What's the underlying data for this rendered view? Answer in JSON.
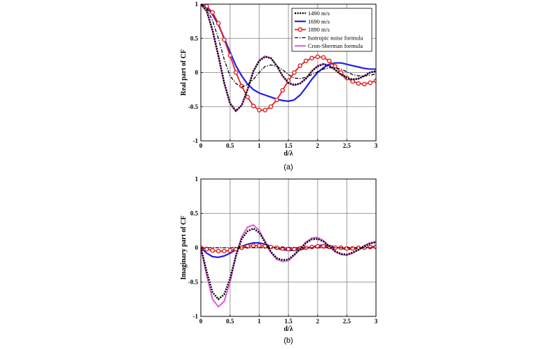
{
  "chart_data": [
    {
      "type": "line",
      "caption": "(a)",
      "xlabel": "d/λ",
      "ylabel": "Real part of CF",
      "xlim": [
        0,
        3
      ],
      "ylim": [
        -1,
        1
      ],
      "xticks": [
        "0",
        "0.5",
        "1",
        "1.5",
        "2",
        "2.5",
        "3"
      ],
      "yticks": [
        "-1",
        "-0.5",
        "0",
        "0.5",
        "1"
      ],
      "grid": true,
      "legend": "top-right",
      "series": [
        {
          "name": "1490 m/s",
          "color": "#000000",
          "style": "dotted",
          "x": [
            0,
            0.1,
            0.2,
            0.3,
            0.4,
            0.5,
            0.6,
            0.7,
            0.8,
            0.9,
            1.0,
            1.1,
            1.2,
            1.3,
            1.4,
            1.5,
            1.6,
            1.7,
            1.8,
            1.9,
            2.0,
            2.1,
            2.2,
            2.3,
            2.4,
            2.5,
            2.6,
            2.7,
            2.8,
            2.9,
            3.0
          ],
          "y": [
            1,
            0.9,
            0.62,
            0.25,
            -0.15,
            -0.45,
            -0.56,
            -0.48,
            -0.25,
            0.02,
            0.17,
            0.23,
            0.21,
            0.1,
            -0.05,
            -0.15,
            -0.18,
            -0.16,
            -0.09,
            0.02,
            0.09,
            0.12,
            0.1,
            0.04,
            -0.03,
            -0.08,
            -0.1,
            -0.09,
            -0.05,
            0.0,
            0.02
          ]
        },
        {
          "name": "1690 m/s",
          "color": "#1f1fe6",
          "style": "solid",
          "x": [
            0,
            0.1,
            0.2,
            0.3,
            0.4,
            0.5,
            0.6,
            0.7,
            0.8,
            0.9,
            1.0,
            1.1,
            1.2,
            1.3,
            1.4,
            1.5,
            1.6,
            1.7,
            1.8,
            1.9,
            2.0,
            2.1,
            2.2,
            2.3,
            2.4,
            2.5,
            2.6,
            2.7,
            2.8,
            2.9,
            3.0
          ],
          "y": [
            1,
            0.96,
            0.85,
            0.7,
            0.5,
            0.3,
            0.1,
            -0.05,
            -0.17,
            -0.25,
            -0.3,
            -0.33,
            -0.36,
            -0.39,
            -0.41,
            -0.42,
            -0.4,
            -0.33,
            -0.22,
            -0.1,
            0.0,
            0.07,
            0.12,
            0.14,
            0.14,
            0.12,
            0.1,
            0.08,
            0.06,
            0.05,
            0.05
          ]
        },
        {
          "name": "1890 m/s",
          "color": "#e51e1e",
          "style": "solid-markers",
          "x": [
            0,
            0.1,
            0.2,
            0.3,
            0.4,
            0.5,
            0.6,
            0.7,
            0.8,
            0.9,
            1.0,
            1.1,
            1.2,
            1.3,
            1.4,
            1.5,
            1.6,
            1.7,
            1.8,
            1.9,
            2.0,
            2.1,
            2.2,
            2.3,
            2.4,
            2.5,
            2.6,
            2.7,
            2.8,
            2.9,
            3.0
          ],
          "y": [
            1,
            0.97,
            0.88,
            0.72,
            0.48,
            0.25,
            0.0,
            -0.2,
            -0.36,
            -0.49,
            -0.55,
            -0.55,
            -0.5,
            -0.4,
            -0.26,
            -0.12,
            0.0,
            0.1,
            0.17,
            0.21,
            0.23,
            0.22,
            0.17,
            0.09,
            0.0,
            -0.08,
            -0.13,
            -0.16,
            -0.17,
            -0.15,
            -0.12
          ]
        },
        {
          "name": "Isotropic noise formula",
          "color": "#000000",
          "style": "dashdot",
          "x": [
            0,
            0.1,
            0.2,
            0.3,
            0.4,
            0.5,
            0.6,
            0.7,
            0.8,
            0.9,
            1.0,
            1.1,
            1.2,
            1.3,
            1.4,
            1.5,
            1.6,
            1.7,
            1.8,
            1.9,
            2.0,
            2.1,
            2.2,
            2.3,
            2.4,
            2.5,
            2.6,
            2.7,
            2.8,
            2.9,
            3.0
          ],
          "y": [
            1,
            0.94,
            0.76,
            0.5,
            0.19,
            -0.05,
            -0.16,
            -0.21,
            -0.18,
            -0.1,
            0.0,
            0.09,
            0.11,
            0.09,
            0.04,
            -0.03,
            -0.08,
            -0.09,
            -0.07,
            -0.03,
            0.01,
            0.05,
            0.07,
            0.07,
            0.05,
            0.01,
            -0.03,
            -0.05,
            -0.05,
            -0.04,
            -0.02
          ]
        },
        {
          "name": "Cron-Sherman formula",
          "color": "#dd66dd",
          "style": "solid",
          "x": [
            0,
            0.1,
            0.2,
            0.3,
            0.4,
            0.5,
            0.6,
            0.7,
            0.8,
            0.9,
            1.0,
            1.1,
            1.2,
            1.3,
            1.4,
            1.5,
            1.6,
            1.7,
            1.8,
            1.9,
            2.0,
            2.1,
            2.2,
            2.3,
            2.4,
            2.5,
            2.6,
            2.7,
            2.8,
            2.9,
            3.0
          ],
          "y": [
            1,
            0.9,
            0.61,
            0.24,
            -0.16,
            -0.46,
            -0.57,
            -0.48,
            -0.25,
            0.02,
            0.18,
            0.24,
            0.21,
            0.1,
            -0.05,
            -0.16,
            -0.19,
            -0.16,
            -0.09,
            0.02,
            0.1,
            0.13,
            0.1,
            0.04,
            -0.03,
            -0.09,
            -0.11,
            -0.09,
            -0.05,
            0.0,
            0.02
          ]
        }
      ]
    },
    {
      "type": "line",
      "caption": "(b)",
      "xlabel": "d/λ",
      "ylabel": "Imaginary part of CF",
      "xlim": [
        0,
        3
      ],
      "ylim": [
        -1,
        1
      ],
      "xticks": [
        "0",
        "0.5",
        "1",
        "1.5",
        "2",
        "2.5",
        "3"
      ],
      "yticks": [
        "-1",
        "-0.5",
        "0",
        "0.5",
        "1"
      ],
      "grid": true,
      "series": [
        {
          "name": "1490 m/s",
          "color": "#000000",
          "style": "dotted",
          "x": [
            0,
            0.1,
            0.2,
            0.3,
            0.4,
            0.5,
            0.6,
            0.7,
            0.8,
            0.9,
            1.0,
            1.1,
            1.2,
            1.3,
            1.4,
            1.5,
            1.6,
            1.7,
            1.8,
            1.9,
            2.0,
            2.1,
            2.2,
            2.3,
            2.4,
            2.5,
            2.6,
            2.7,
            2.8,
            2.9,
            3.0
          ],
          "y": [
            0,
            -0.35,
            -0.65,
            -0.75,
            -0.68,
            -0.45,
            -0.12,
            0.13,
            0.24,
            0.28,
            0.22,
            0.08,
            -0.06,
            -0.15,
            -0.18,
            -0.17,
            -0.1,
            -0.02,
            0.07,
            0.12,
            0.13,
            0.09,
            0.02,
            -0.05,
            -0.09,
            -0.1,
            -0.07,
            -0.03,
            0.02,
            0.06,
            0.08
          ]
        },
        {
          "name": "1690 m/s",
          "color": "#1f1fe6",
          "style": "solid",
          "x": [
            0,
            0.1,
            0.2,
            0.3,
            0.4,
            0.5,
            0.6,
            0.7,
            0.8,
            0.9,
            1.0,
            1.1,
            1.2,
            1.3,
            1.4,
            1.5,
            1.6,
            1.7,
            1.8,
            1.9,
            2.0,
            2.1,
            2.2,
            2.3,
            2.4,
            2.5,
            2.6,
            2.7,
            2.8,
            2.9,
            3.0
          ],
          "y": [
            0,
            -0.08,
            -0.13,
            -0.14,
            -0.12,
            -0.08,
            -0.03,
            0.02,
            0.05,
            0.07,
            0.07,
            0.05,
            0.02,
            -0.01,
            -0.03,
            -0.04,
            -0.04,
            -0.03,
            -0.01,
            0.01,
            0.03,
            0.04,
            0.03,
            0.01,
            -0.01,
            -0.02,
            -0.02,
            -0.01,
            0.0,
            0.01,
            0.02
          ]
        },
        {
          "name": "1890 m/s",
          "color": "#e51e1e",
          "style": "solid-markers",
          "x": [
            0,
            0.1,
            0.2,
            0.3,
            0.4,
            0.5,
            0.6,
            0.7,
            0.8,
            0.9,
            1.0,
            1.1,
            1.2,
            1.3,
            1.4,
            1.5,
            1.6,
            1.7,
            1.8,
            1.9,
            2.0,
            2.1,
            2.2,
            2.3,
            2.4,
            2.5,
            2.6,
            2.7,
            2.8,
            2.9,
            3.0
          ],
          "y": [
            0,
            -0.02,
            -0.04,
            -0.05,
            -0.05,
            -0.04,
            -0.02,
            0.0,
            0.02,
            0.03,
            0.03,
            0.02,
            0.01,
            0.0,
            -0.01,
            -0.02,
            -0.02,
            -0.01,
            0.0,
            0.01,
            0.02,
            0.02,
            0.01,
            0.0,
            0.0,
            -0.01,
            -0.01,
            0.0,
            0.0,
            0.01,
            0.01
          ]
        },
        {
          "name": "Isotropic noise formula",
          "color": "#000000",
          "style": "dashdot",
          "x": [
            0,
            3
          ],
          "y": [
            0,
            0
          ]
        },
        {
          "name": "Cron-Sherman formula",
          "color": "#dd66dd",
          "style": "solid",
          "x": [
            0,
            0.1,
            0.2,
            0.3,
            0.4,
            0.5,
            0.6,
            0.7,
            0.8,
            0.9,
            1.0,
            1.1,
            1.2,
            1.3,
            1.4,
            1.5,
            1.6,
            1.7,
            1.8,
            1.9,
            2.0,
            2.1,
            2.2,
            2.3,
            2.4,
            2.5,
            2.6,
            2.7,
            2.8,
            2.9,
            3.0
          ],
          "y": [
            0,
            -0.4,
            -0.75,
            -0.86,
            -0.78,
            -0.5,
            -0.12,
            0.16,
            0.3,
            0.33,
            0.25,
            0.09,
            -0.07,
            -0.17,
            -0.2,
            -0.19,
            -0.11,
            -0.02,
            0.08,
            0.14,
            0.15,
            0.1,
            0.02,
            -0.06,
            -0.1,
            -0.11,
            -0.08,
            -0.03,
            0.03,
            0.07,
            0.09
          ]
        }
      ]
    }
  ]
}
